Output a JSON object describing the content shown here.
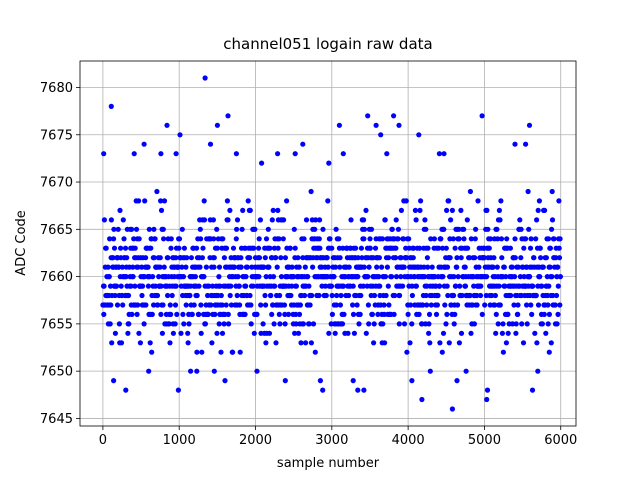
{
  "chart_data": {
    "type": "scatter",
    "title": "channel051 logain raw data",
    "xlabel": "sample number",
    "ylabel": "ADC Code",
    "xlim": [
      -300,
      6200
    ],
    "ylim": [
      7644.2,
      7682.8
    ],
    "xticks": [
      0,
      1000,
      2000,
      3000,
      4000,
      5000,
      6000
    ],
    "yticks": [
      7645,
      7650,
      7655,
      7660,
      7665,
      7670,
      7675,
      7680
    ],
    "grid": true,
    "marker_color": "#0000ff",
    "n_samples": 6000,
    "value_levels": [
      {
        "value": 7652,
        "weight": 1
      },
      {
        "value": 7653,
        "weight": 2
      },
      {
        "value": 7654,
        "weight": 3
      },
      {
        "value": 7655,
        "weight": 5
      },
      {
        "value": 7656,
        "weight": 8
      },
      {
        "value": 7657,
        "weight": 11
      },
      {
        "value": 7658,
        "weight": 14
      },
      {
        "value": 7659,
        "weight": 16
      },
      {
        "value": 7660,
        "weight": 17
      },
      {
        "value": 7661,
        "weight": 16
      },
      {
        "value": 7662,
        "weight": 14
      },
      {
        "value": 7663,
        "weight": 11
      },
      {
        "value": 7664,
        "weight": 8
      },
      {
        "value": 7665,
        "weight": 5
      },
      {
        "value": 7666,
        "weight": 3
      },
      {
        "value": 7667,
        "weight": 2
      },
      {
        "value": 7668,
        "weight": 1.2
      },
      {
        "value": 7669,
        "weight": 0.7
      }
    ],
    "scattered_points": [
      {
        "x": 10,
        "y": 7673
      },
      {
        "x": 110,
        "y": 7678
      },
      {
        "x": 140,
        "y": 7649
      },
      {
        "x": 300,
        "y": 7648
      },
      {
        "x": 410,
        "y": 7673
      },
      {
        "x": 540,
        "y": 7674
      },
      {
        "x": 600,
        "y": 7650
      },
      {
        "x": 760,
        "y": 7673
      },
      {
        "x": 840,
        "y": 7676
      },
      {
        "x": 960,
        "y": 7673
      },
      {
        "x": 990,
        "y": 7648
      },
      {
        "x": 1010,
        "y": 7675
      },
      {
        "x": 1150,
        "y": 7650
      },
      {
        "x": 1230,
        "y": 7650
      },
      {
        "x": 1340,
        "y": 7681
      },
      {
        "x": 1410,
        "y": 7674
      },
      {
        "x": 1460,
        "y": 7650
      },
      {
        "x": 1500,
        "y": 7676
      },
      {
        "x": 1600,
        "y": 7649
      },
      {
        "x": 1640,
        "y": 7677
      },
      {
        "x": 1750,
        "y": 7673
      },
      {
        "x": 2020,
        "y": 7650
      },
      {
        "x": 2080,
        "y": 7672
      },
      {
        "x": 2290,
        "y": 7673
      },
      {
        "x": 2390,
        "y": 7649
      },
      {
        "x": 2520,
        "y": 7673
      },
      {
        "x": 2620,
        "y": 7674
      },
      {
        "x": 2850,
        "y": 7649
      },
      {
        "x": 2880,
        "y": 7648
      },
      {
        "x": 2960,
        "y": 7672
      },
      {
        "x": 3100,
        "y": 7676
      },
      {
        "x": 3150,
        "y": 7673
      },
      {
        "x": 3280,
        "y": 7649
      },
      {
        "x": 3340,
        "y": 7648
      },
      {
        "x": 3420,
        "y": 7648
      },
      {
        "x": 3470,
        "y": 7677
      },
      {
        "x": 3580,
        "y": 7676
      },
      {
        "x": 3640,
        "y": 7675
      },
      {
        "x": 3720,
        "y": 7673
      },
      {
        "x": 3810,
        "y": 7677
      },
      {
        "x": 3880,
        "y": 7676
      },
      {
        "x": 4050,
        "y": 7649
      },
      {
        "x": 4140,
        "y": 7675
      },
      {
        "x": 4180,
        "y": 7647
      },
      {
        "x": 4290,
        "y": 7650
      },
      {
        "x": 4410,
        "y": 7673
      },
      {
        "x": 4470,
        "y": 7673
      },
      {
        "x": 4580,
        "y": 7646
      },
      {
        "x": 4640,
        "y": 7649
      },
      {
        "x": 4760,
        "y": 7650
      },
      {
        "x": 4970,
        "y": 7677
      },
      {
        "x": 5030,
        "y": 7647
      },
      {
        "x": 5040,
        "y": 7648
      },
      {
        "x": 5400,
        "y": 7674
      },
      {
        "x": 5540,
        "y": 7674
      },
      {
        "x": 5590,
        "y": 7676
      },
      {
        "x": 5630,
        "y": 7648
      },
      {
        "x": 5700,
        "y": 7650
      },
      {
        "x": 5850,
        "y": 7652
      }
    ]
  }
}
